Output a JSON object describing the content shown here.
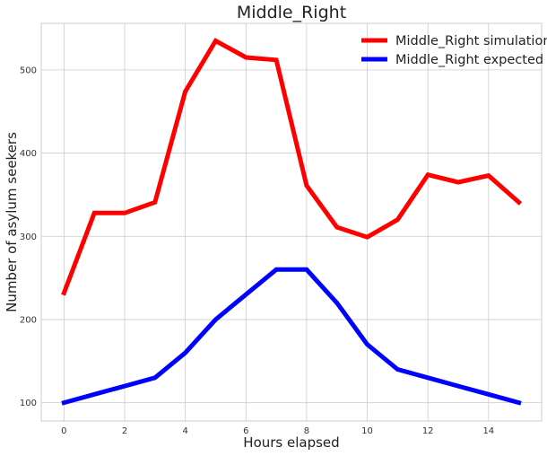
{
  "chart_data": {
    "type": "line",
    "title": "Middle_Right",
    "xlabel": "Hours elapsed",
    "ylabel": "Number of asylum seekers",
    "xlim": [
      -0.75,
      15.75
    ],
    "ylim": [
      78,
      556
    ],
    "xticks": [
      0,
      2,
      4,
      6,
      8,
      10,
      12,
      14
    ],
    "yticks": [
      100,
      200,
      300,
      400,
      500
    ],
    "grid": true,
    "legend_position": "top-right",
    "x": [
      0,
      1,
      2,
      3,
      4,
      5,
      6,
      7,
      8,
      9,
      10,
      11,
      12,
      13,
      14,
      15
    ],
    "series": [
      {
        "name": "Middle_Right simulation",
        "color": "#ff0000",
        "values": [
          232,
          328,
          328,
          341,
          474,
          535,
          515,
          512,
          361,
          311,
          299,
          320,
          374,
          365,
          373,
          341
        ]
      },
      {
        "name": "Middle_Right expected",
        "color": "#0000ff",
        "values": [
          100,
          110,
          120,
          130,
          160,
          200,
          230,
          260,
          260,
          220,
          170,
          140,
          130,
          120,
          110,
          100
        ]
      }
    ]
  }
}
